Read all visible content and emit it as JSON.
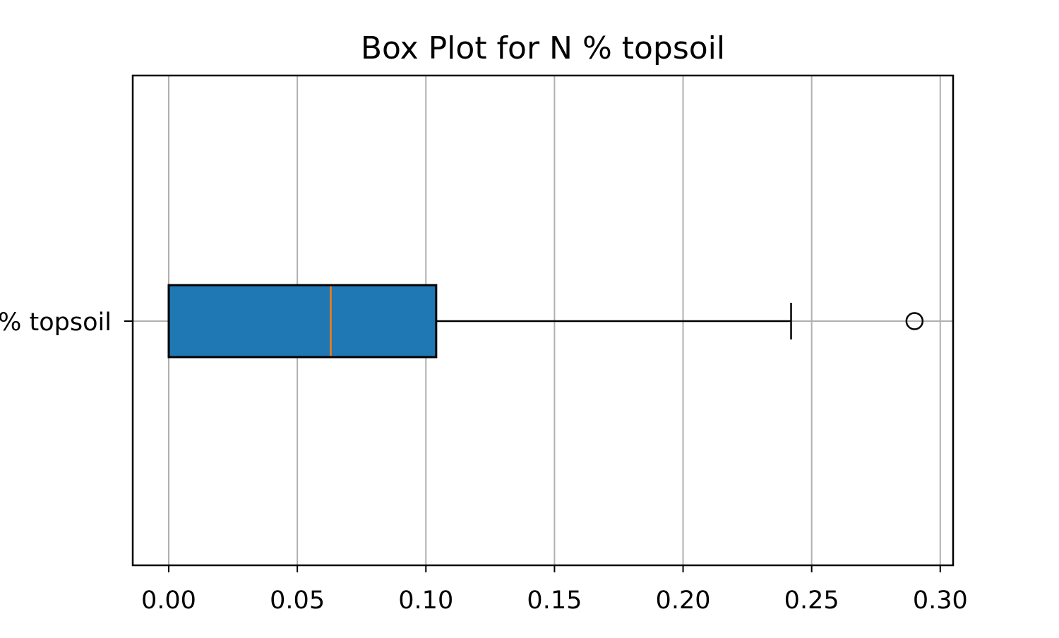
{
  "chart_data": {
    "type": "boxplot",
    "orientation": "horizontal",
    "title": "Box Plot for N % topsoil",
    "categories": [
      "N % topsoil"
    ],
    "boxes": [
      {
        "category": "N % topsoil",
        "whisker_low": 0.0,
        "q1": 0.0,
        "median": 0.063,
        "q3": 0.104,
        "whisker_high": 0.242,
        "outliers": [
          0.29
        ]
      }
    ],
    "xlim": [
      -0.014,
      0.305
    ],
    "xticks": [
      "0.00",
      "0.05",
      "0.10",
      "0.15",
      "0.20",
      "0.25",
      "0.30"
    ],
    "grid": true,
    "colors": {
      "box_fill": "#1f77b4",
      "median": "#ff7f0e",
      "grid": "#b0b0b0",
      "edge": "#000000"
    }
  }
}
